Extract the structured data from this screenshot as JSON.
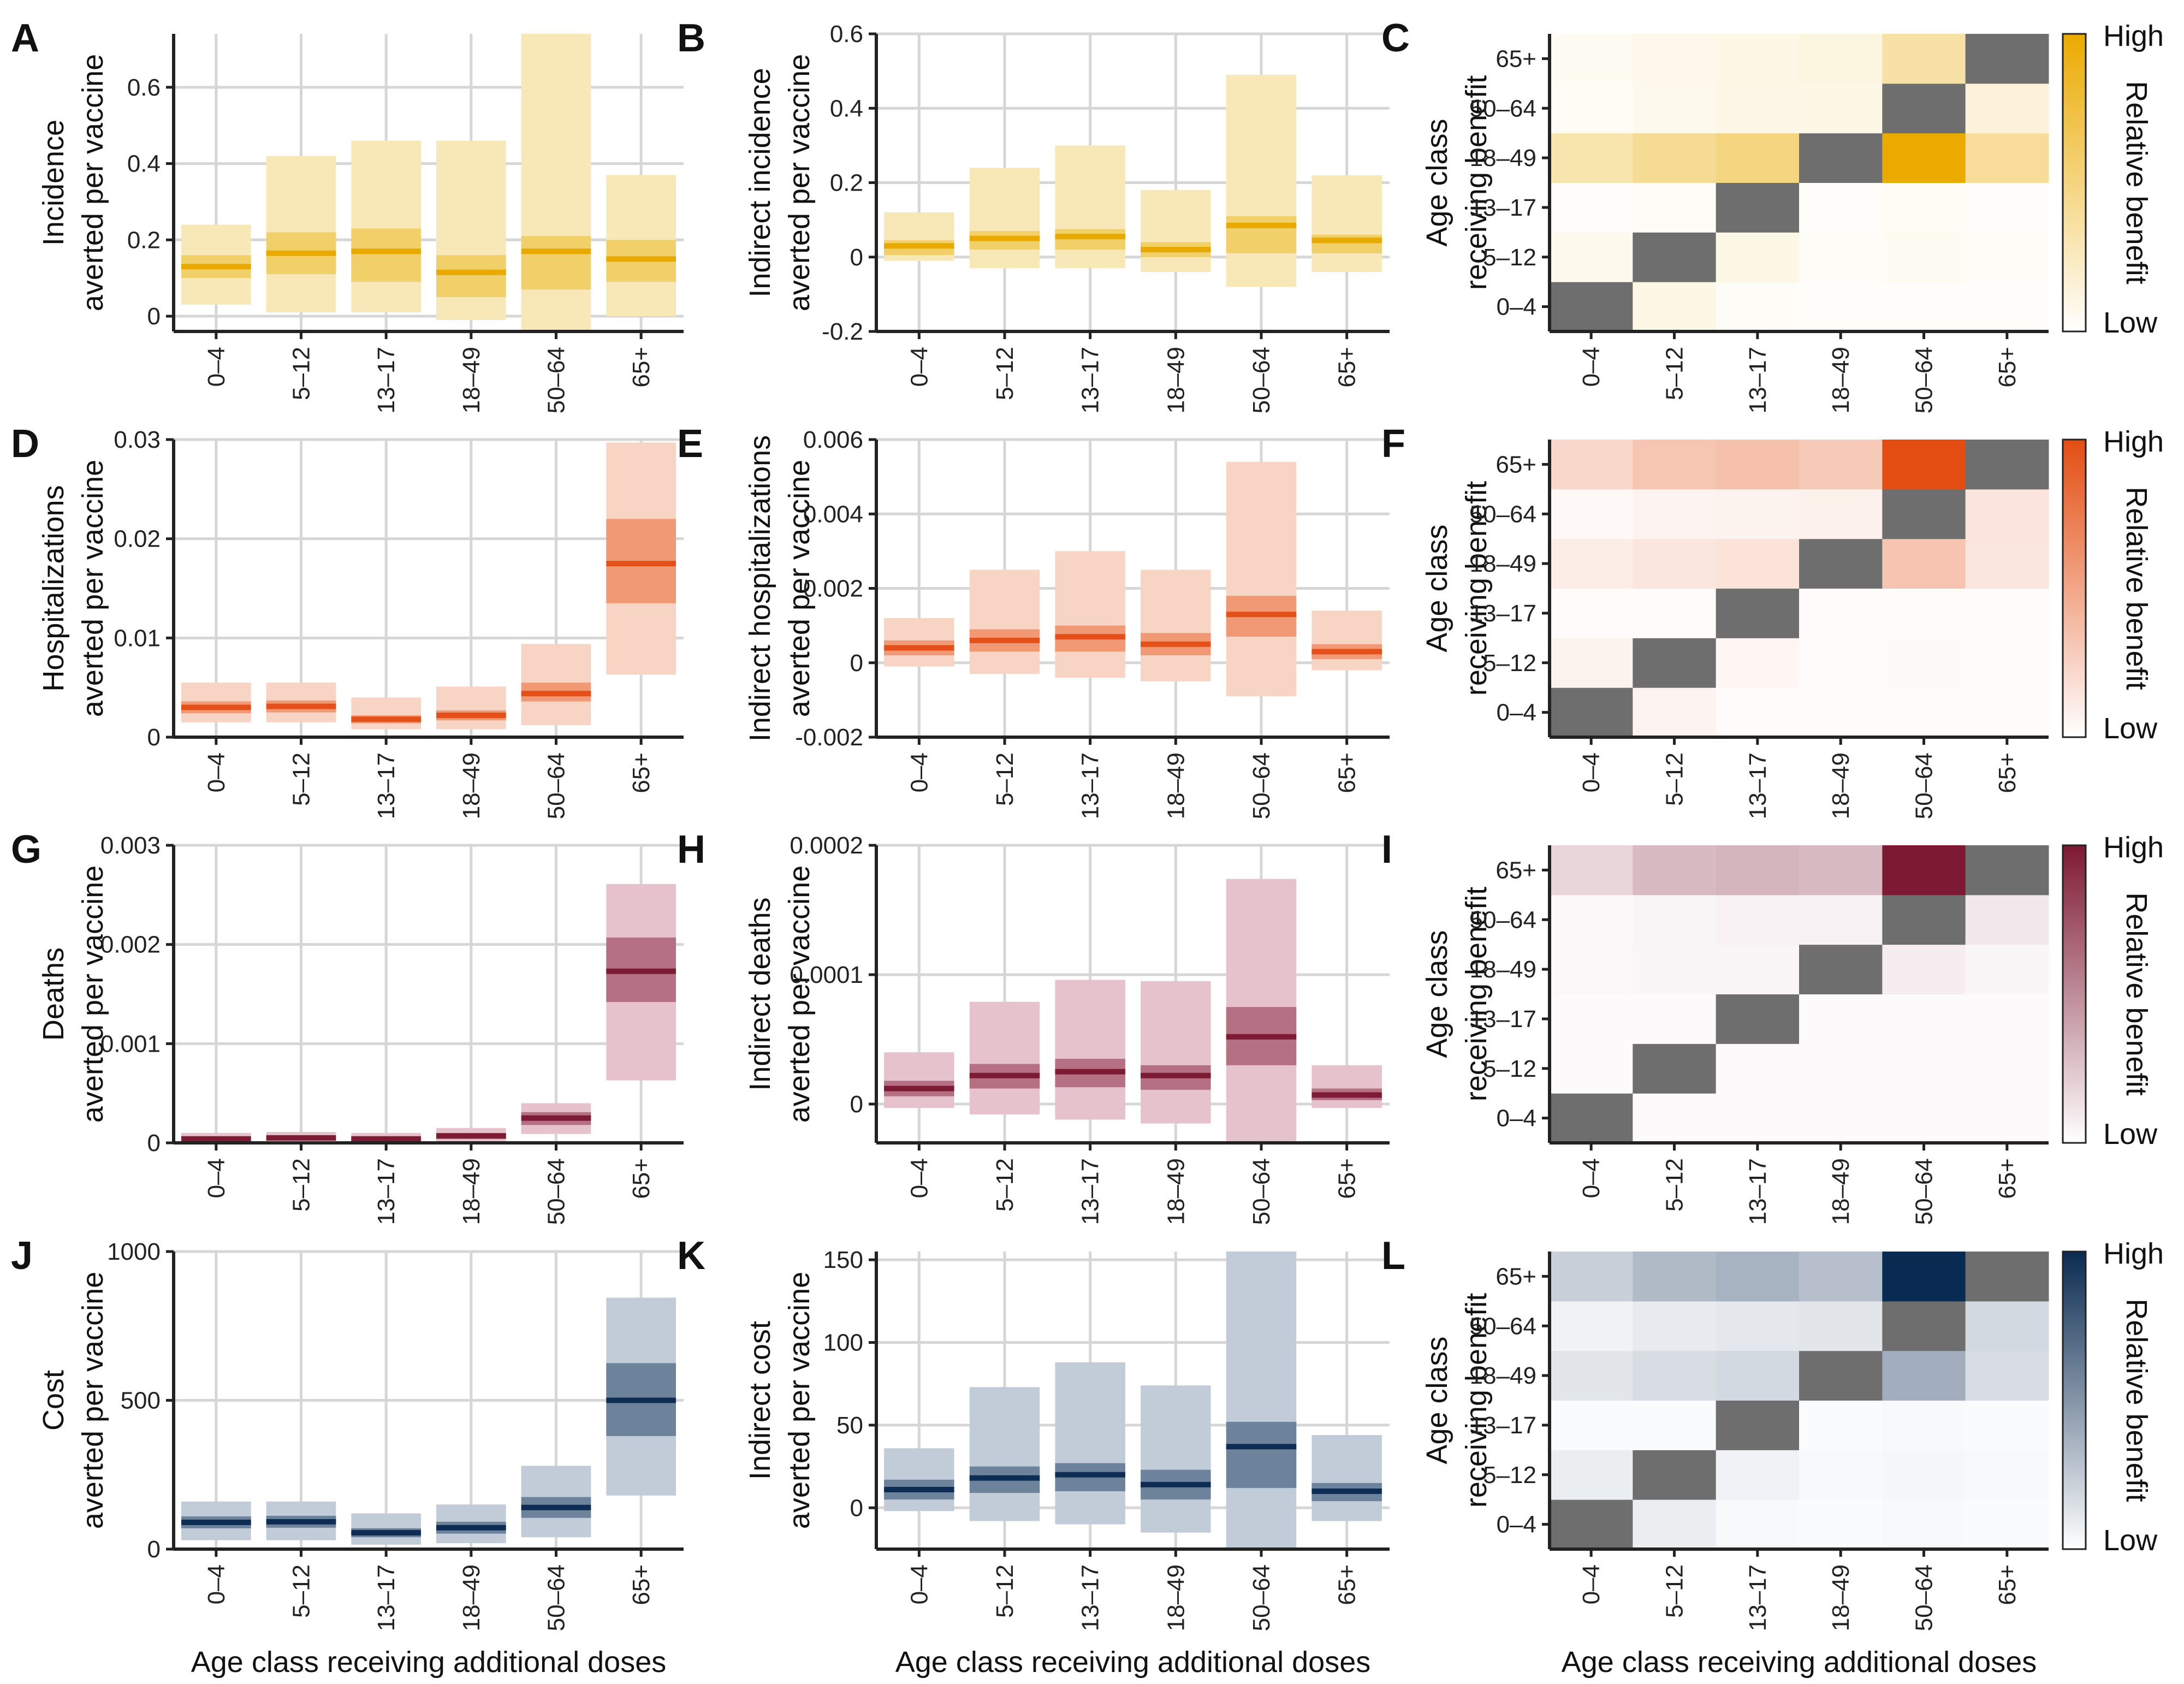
{
  "x_axis_label": "Age class receiving additional doses",
  "chart_data": [
    {
      "panel": "A",
      "type": "bar",
      "ylabel": [
        "Incidence",
        "averted per vaccine"
      ],
      "categories": [
        "0–4",
        "5–12",
        "13–17",
        "18–49",
        "50–64",
        "65+"
      ],
      "ylim": [
        -0.04,
        0.74
      ],
      "yticks": [
        0,
        0.2,
        0.4,
        0.6
      ],
      "ytick_labels": [
        "0",
        "0.2",
        "0.4",
        "0.6"
      ],
      "median": [
        0.13,
        0.165,
        0.17,
        0.115,
        0.17,
        0.15
      ],
      "inner": [
        [
          0.1,
          0.16
        ],
        [
          0.11,
          0.22
        ],
        [
          0.09,
          0.23
        ],
        [
          0.05,
          0.16
        ],
        [
          0.07,
          0.21
        ],
        [
          0.09,
          0.2
        ]
      ],
      "outer": [
        [
          0.03,
          0.24
        ],
        [
          0.01,
          0.42
        ],
        [
          0.01,
          0.46
        ],
        [
          -0.01,
          0.46
        ],
        [
          -0.04,
          0.74
        ],
        [
          0.0,
          0.37
        ]
      ],
      "color": "#E8A900",
      "light": "#F8E8B8",
      "mid": "#F0CB5C"
    },
    {
      "panel": "B",
      "type": "bar",
      "ylabel": [
        "Indirect incidence",
        "averted per vaccine"
      ],
      "categories": [
        "0–4",
        "5–12",
        "13–17",
        "18–49",
        "50–64",
        "65+"
      ],
      "ylim": [
        -0.2,
        0.6
      ],
      "yticks": [
        -0.2,
        0,
        0.2,
        0.4,
        0.6
      ],
      "ytick_labels": [
        "-0.2",
        "0",
        "0.2",
        "0.4",
        "0.6"
      ],
      "median": [
        0.03,
        0.05,
        0.055,
        0.02,
        0.085,
        0.045
      ],
      "inner": [
        [
          0.005,
          0.045
        ],
        [
          0.02,
          0.07
        ],
        [
          0.02,
          0.075
        ],
        [
          0.0,
          0.04
        ],
        [
          0.01,
          0.11
        ],
        [
          0.01,
          0.06
        ]
      ],
      "outer": [
        [
          -0.01,
          0.12
        ],
        [
          -0.03,
          0.24
        ],
        [
          -0.03,
          0.3
        ],
        [
          -0.04,
          0.18
        ],
        [
          -0.08,
          0.49
        ],
        [
          -0.04,
          0.22
        ]
      ],
      "color": "#E8A900",
      "light": "#F8E8B8",
      "mid": "#F0CB5C"
    },
    {
      "panel": "C",
      "type": "heatmap",
      "ylabel": [
        "Age class",
        "receiving benefit"
      ],
      "x_categories": [
        "0–4",
        "5–12",
        "13–17",
        "18–49",
        "50–64",
        "65+"
      ],
      "y_categories": [
        "0–4",
        "5–12",
        "13–17",
        "18–49",
        "50–64",
        "65+"
      ],
      "values": [
        [
          -1,
          0.1,
          0.03,
          0.01,
          0.02,
          0.01
        ],
        [
          0.07,
          -1,
          0.1,
          0.03,
          0.05,
          0.03
        ],
        [
          0.01,
          0.03,
          -1,
          0.01,
          0.04,
          0.02
        ],
        [
          0.32,
          0.42,
          0.5,
          -1,
          1.0,
          0.4
        ],
        [
          0.04,
          0.07,
          0.09,
          0.1,
          -1,
          0.15
        ],
        [
          0.05,
          0.08,
          0.1,
          0.12,
          0.35,
          -1
        ]
      ],
      "colorbar_high": "High",
      "colorbar_low": "Low",
      "colorbar_label": "Relative benefit",
      "color": "#EAAA00"
    },
    {
      "panel": "D",
      "type": "bar",
      "ylabel": [
        "Hospitalizations",
        "averted per vaccine"
      ],
      "categories": [
        "0–4",
        "5–12",
        "13–17",
        "18–49",
        "50–64",
        "65+"
      ],
      "ylim": [
        0,
        0.03
      ],
      "yticks": [
        0,
        0.01,
        0.02,
        0.03
      ],
      "ytick_labels": [
        "0",
        "0.01",
        "0.02",
        "0.03"
      ],
      "median": [
        0.003,
        0.0031,
        0.0018,
        0.0022,
        0.0044,
        0.0175
      ],
      "inner": [
        [
          0.0024,
          0.0036
        ],
        [
          0.0025,
          0.0037
        ],
        [
          0.0014,
          0.0022
        ],
        [
          0.0017,
          0.0027
        ],
        [
          0.0036,
          0.0055
        ],
        [
          0.0135,
          0.022
        ]
      ],
      "outer": [
        [
          0.0015,
          0.0055
        ],
        [
          0.0015,
          0.0055
        ],
        [
          0.0008,
          0.004
        ],
        [
          0.0008,
          0.0051
        ],
        [
          0.0012,
          0.0094
        ],
        [
          0.0063,
          0.0297
        ]
      ],
      "color": "#E5501A",
      "light": "#F8D4C4",
      "mid": "#EE8E66"
    },
    {
      "panel": "E",
      "type": "bar",
      "ylabel": [
        "Indirect hospitalizations",
        "averted per vaccine"
      ],
      "categories": [
        "0–4",
        "5–12",
        "13–17",
        "18–49",
        "50–64",
        "65+"
      ],
      "ylim": [
        -0.002,
        0.006
      ],
      "yticks": [
        -0.002,
        0,
        0.002,
        0.004,
        0.006
      ],
      "ytick_labels": [
        "-0.002",
        "0",
        "0.002",
        "0.004",
        "0.006"
      ],
      "median": [
        0.0004,
        0.0006,
        0.0007,
        0.0005,
        0.0013,
        0.0003
      ],
      "inner": [
        [
          0.0002,
          0.0006
        ],
        [
          0.0003,
          0.0009
        ],
        [
          0.0003,
          0.001
        ],
        [
          0.0002,
          0.0008
        ],
        [
          0.0007,
          0.0018
        ],
        [
          0.0001,
          0.0005
        ]
      ],
      "outer": [
        [
          -0.0001,
          0.0012
        ],
        [
          -0.0003,
          0.0025
        ],
        [
          -0.0004,
          0.003
        ],
        [
          -0.0005,
          0.0025
        ],
        [
          -0.0009,
          0.0054
        ],
        [
          -0.0002,
          0.0014
        ]
      ],
      "color": "#E5501A",
      "light": "#F8D4C4",
      "mid": "#EE8E66"
    },
    {
      "panel": "F",
      "type": "heatmap",
      "ylabel": [
        "Age class",
        "receiving benefit"
      ],
      "x_categories": [
        "0–4",
        "5–12",
        "13–17",
        "18–49",
        "50–64",
        "65+"
      ],
      "y_categories": [
        "0–4",
        "5–12",
        "13–17",
        "18–49",
        "50–64",
        "65+"
      ],
      "values": [
        [
          -1,
          0.06,
          0.02,
          0.01,
          0.02,
          0.01
        ],
        [
          0.07,
          -1,
          0.05,
          0.02,
          0.03,
          0.02
        ],
        [
          0.01,
          0.02,
          -1,
          0.01,
          0.02,
          0.01
        ],
        [
          0.1,
          0.14,
          0.16,
          -1,
          0.33,
          0.14
        ],
        [
          0.04,
          0.06,
          0.07,
          0.08,
          -1,
          0.15
        ],
        [
          0.22,
          0.32,
          0.35,
          0.3,
          1.0,
          -1
        ]
      ],
      "colorbar_high": "High",
      "colorbar_low": "Low",
      "colorbar_label": "Relative benefit",
      "color": "#E34D12"
    },
    {
      "panel": "G",
      "type": "bar",
      "ylabel": [
        "Deaths",
        "averted per vaccine"
      ],
      "categories": [
        "0–4",
        "5–12",
        "13–17",
        "18–49",
        "50–64",
        "65+"
      ],
      "ylim": [
        0,
        0.003
      ],
      "yticks": [
        0,
        0.001,
        0.002,
        0.003
      ],
      "ytick_labels": [
        "0",
        "0.001",
        "0.002",
        "0.003"
      ],
      "median": [
        4e-05,
        5e-05,
        4e-05,
        7e-05,
        0.00025,
        0.00173
      ],
      "inner": [
        [
          2e-05,
          6e-05
        ],
        [
          3e-05,
          7e-05
        ],
        [
          2e-05,
          6e-05
        ],
        [
          4e-05,
          0.0001
        ],
        [
          0.00018,
          0.00031
        ],
        [
          0.00142,
          0.00207
        ]
      ],
      "outer": [
        [
          1e-05,
          0.0001
        ],
        [
          1e-05,
          0.00011
        ],
        [
          1e-05,
          0.0001
        ],
        [
          1e-05,
          0.00015
        ],
        [
          9e-05,
          0.0004
        ],
        [
          0.00063,
          0.00261
        ]
      ],
      "color": "#7E1B34",
      "light": "#E6C3CC",
      "mid": "#AC6375"
    },
    {
      "panel": "H",
      "type": "bar",
      "ylabel": [
        "Indirect deaths",
        "averted per vaccine"
      ],
      "categories": [
        "0–4",
        "5–12",
        "13–17",
        "18–49",
        "50–64",
        "65+"
      ],
      "ylim": [
        -3e-05,
        0.0002
      ],
      "yticks": [
        0,
        0.0001,
        0.0002
      ],
      "ytick_labels": [
        "0",
        "0.0001",
        "0.0002"
      ],
      "median": [
        1.2e-05,
        2.2e-05,
        2.5e-05,
        2.2e-05,
        5.2e-05,
        7e-06
      ],
      "inner": [
        [
          6e-06,
          1.8e-05
        ],
        [
          1.2e-05,
          3.1e-05
        ],
        [
          1.3e-05,
          3.5e-05
        ],
        [
          1.1e-05,
          3e-05
        ],
        [
          3e-05,
          7.5e-05
        ],
        [
          3e-06,
          1.2e-05
        ]
      ],
      "outer": [
        [
          -3e-06,
          4e-05
        ],
        [
          -8e-06,
          7.9e-05
        ],
        [
          -1.2e-05,
          9.6e-05
        ],
        [
          -1.5e-05,
          9.5e-05
        ],
        [
          -3e-05,
          0.000174
        ],
        [
          -3e-06,
          3e-05
        ]
      ],
      "color": "#7E1B34",
      "light": "#E6C3CC",
      "mid": "#AC6375"
    },
    {
      "panel": "I",
      "type": "heatmap",
      "ylabel": [
        "Age class",
        "receiving benefit"
      ],
      "x_categories": [
        "0–4",
        "5–12",
        "13–17",
        "18–49",
        "50–64",
        "65+"
      ],
      "y_categories": [
        "0–4",
        "5–12",
        "13–17",
        "18–49",
        "50–64",
        "65+"
      ],
      "values": [
        [
          -1,
          0.02,
          0.01,
          0.005,
          0.005,
          0.005
        ],
        [
          0.02,
          -1,
          0.015,
          0.005,
          0.01,
          0.005
        ],
        [
          0.005,
          0.01,
          -1,
          0.005,
          0.005,
          0.005
        ],
        [
          0.03,
          0.04,
          0.04,
          -1,
          0.08,
          0.04
        ],
        [
          0.03,
          0.05,
          0.06,
          0.06,
          -1,
          0.1
        ],
        [
          0.18,
          0.3,
          0.32,
          0.3,
          1.0,
          -1
        ]
      ],
      "colorbar_high": "High",
      "colorbar_low": "Low",
      "colorbar_label": "Relative benefit",
      "color": "#7D1932"
    },
    {
      "panel": "J",
      "type": "bar",
      "ylabel": [
        "Cost",
        "averted per vaccine"
      ],
      "categories": [
        "0–4",
        "5–12",
        "13–17",
        "18–49",
        "50–64",
        "65+"
      ],
      "ylim": [
        0,
        1000
      ],
      "yticks": [
        0,
        500,
        1000
      ],
      "ytick_labels": [
        "0",
        "500",
        "1000"
      ],
      "median": [
        90,
        92,
        55,
        72,
        140,
        500
      ],
      "inner": [
        [
          70,
          110
        ],
        [
          72,
          112
        ],
        [
          40,
          70
        ],
        [
          52,
          92
        ],
        [
          105,
          175
        ],
        [
          380,
          625
        ]
      ],
      "outer": [
        [
          30,
          160
        ],
        [
          30,
          160
        ],
        [
          15,
          120
        ],
        [
          20,
          150
        ],
        [
          40,
          280
        ],
        [
          180,
          845
        ]
      ],
      "color": "#0E2D55",
      "light": "#C2CCD8",
      "mid": "#5D7591"
    },
    {
      "panel": "K",
      "type": "bar",
      "ylabel": [
        "Indirect cost",
        "averted per vaccine"
      ],
      "categories": [
        "0–4",
        "5–12",
        "13–17",
        "18–49",
        "50–64",
        "65+"
      ],
      "ylim": [
        -25,
        155
      ],
      "yticks": [
        0,
        50,
        100,
        150
      ],
      "ytick_labels": [
        "0",
        "50",
        "100",
        "150"
      ],
      "median": [
        11,
        18,
        20,
        14,
        37,
        10
      ],
      "inner": [
        [
          5,
          17
        ],
        [
          9,
          25
        ],
        [
          10,
          27
        ],
        [
          5,
          23
        ],
        [
          12,
          52
        ],
        [
          4,
          15
        ]
      ],
      "outer": [
        [
          -2,
          36
        ],
        [
          -8,
          73
        ],
        [
          -10,
          88
        ],
        [
          -15,
          74
        ],
        [
          -25,
          155
        ],
        [
          -8,
          44
        ]
      ],
      "color": "#0E2D55",
      "light": "#C2CCD8",
      "mid": "#5D7591"
    },
    {
      "panel": "L",
      "type": "heatmap",
      "ylabel": [
        "Age class",
        "receiving benefit"
      ],
      "x_categories": [
        "0–4",
        "5–12",
        "13–17",
        "18–49",
        "50–64",
        "65+"
      ],
      "y_categories": [
        "0–4",
        "5–12",
        "13–17",
        "18–49",
        "50–64",
        "65+"
      ],
      "values": [
        [
          -1,
          0.08,
          0.03,
          0.02,
          0.03,
          0.02
        ],
        [
          0.08,
          -1,
          0.06,
          0.03,
          0.04,
          0.03
        ],
        [
          0.01,
          0.02,
          -1,
          0.02,
          0.03,
          0.02
        ],
        [
          0.12,
          0.16,
          0.18,
          -1,
          0.38,
          0.16
        ],
        [
          0.06,
          0.1,
          0.11,
          0.12,
          -1,
          0.18
        ],
        [
          0.22,
          0.32,
          0.36,
          0.3,
          1.0,
          -1
        ]
      ],
      "colorbar_high": "High",
      "colorbar_low": "Low",
      "colorbar_label": "Relative benefit",
      "color": "#0A2B51"
    }
  ]
}
